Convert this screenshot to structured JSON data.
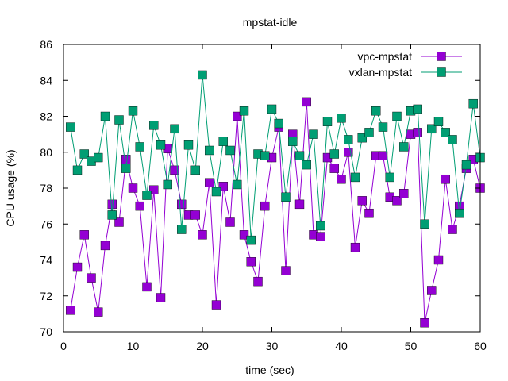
{
  "chart_data": {
    "type": "line",
    "title": "mpstat-idle",
    "xlabel": "time (sec)",
    "ylabel": "CPU usage (%)",
    "xlim": [
      0,
      60
    ],
    "ylim": [
      70,
      86
    ],
    "xticks": [
      0,
      10,
      20,
      30,
      40,
      50,
      60
    ],
    "yticks": [
      70,
      72,
      74,
      76,
      78,
      80,
      82,
      84,
      86
    ],
    "grid": false,
    "legend_position": "top-right",
    "x": [
      1,
      2,
      3,
      4,
      5,
      6,
      7,
      8,
      9,
      10,
      11,
      12,
      13,
      14,
      15,
      16,
      17,
      18,
      19,
      20,
      21,
      22,
      23,
      24,
      25,
      26,
      27,
      28,
      29,
      30,
      31,
      32,
      33,
      34,
      35,
      36,
      37,
      38,
      39,
      40,
      41,
      42,
      43,
      44,
      45,
      46,
      47,
      48,
      49,
      50,
      51,
      52,
      53,
      54,
      55,
      56,
      57,
      58,
      59,
      60
    ],
    "series": [
      {
        "name": "vpc-mpstat",
        "color": "#9400d3",
        "marker": "square",
        "values": [
          71.2,
          73.6,
          75.4,
          73.0,
          71.1,
          74.8,
          77.1,
          76.1,
          79.6,
          78.0,
          77.0,
          72.5,
          77.9,
          71.9,
          80.2,
          79.0,
          77.1,
          76.5,
          76.5,
          75.4,
          78.3,
          71.5,
          78.1,
          76.1,
          82.0,
          75.4,
          73.9,
          72.8,
          77.0,
          79.7,
          81.4,
          73.4,
          81.0,
          77.1,
          82.8,
          75.4,
          75.3,
          79.7,
          79.1,
          78.5,
          80.0,
          74.7,
          77.3,
          76.6,
          79.8,
          79.8,
          77.5,
          77.3,
          77.7,
          81.0,
          81.1,
          70.5,
          72.3,
          74.0,
          78.5,
          75.7,
          77.0,
          79.1,
          79.6,
          78.0
        ]
      },
      {
        "name": "vxlan-mpstat",
        "color": "#009e73",
        "marker": "square",
        "values": [
          81.4,
          79.0,
          79.9,
          79.5,
          79.7,
          82.0,
          76.5,
          81.8,
          79.1,
          82.3,
          80.3,
          77.6,
          81.5,
          80.4,
          78.2,
          81.3,
          75.7,
          80.4,
          79.0,
          84.3,
          80.1,
          77.8,
          80.6,
          80.1,
          78.2,
          82.3,
          75.1,
          79.9,
          79.8,
          82.4,
          81.6,
          77.5,
          80.6,
          79.8,
          79.3,
          81.0,
          75.9,
          81.7,
          79.9,
          81.9,
          80.7,
          78.6,
          80.8,
          81.1,
          82.3,
          81.4,
          78.6,
          82.0,
          80.3,
          82.3,
          82.4,
          76.0,
          81.3,
          81.7,
          81.1,
          80.7,
          76.6,
          79.3,
          82.7,
          79.7
        ]
      }
    ]
  }
}
